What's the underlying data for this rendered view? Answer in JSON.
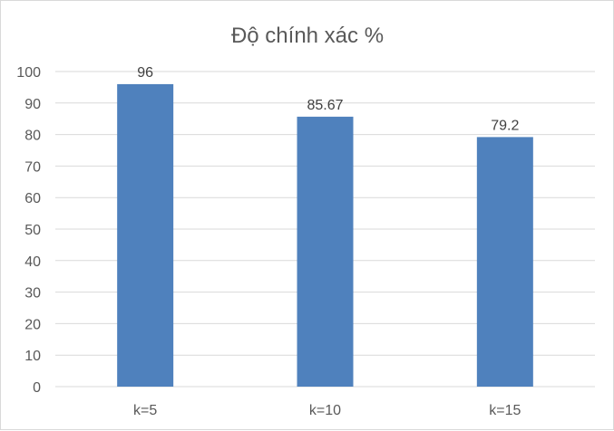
{
  "chart_data": {
    "type": "bar",
    "title": "Độ chính xác %",
    "categories": [
      "k=5",
      "k=10",
      "k=15"
    ],
    "values": [
      96,
      85.67,
      79.2
    ],
    "data_labels": [
      "96",
      "85.67",
      "79.2"
    ],
    "ylim": [
      0,
      100
    ],
    "yticks": [
      0,
      10,
      20,
      30,
      40,
      50,
      60,
      70,
      80,
      90,
      100
    ],
    "grid": true,
    "legend": "none",
    "bar_color": "#4f81bd"
  }
}
